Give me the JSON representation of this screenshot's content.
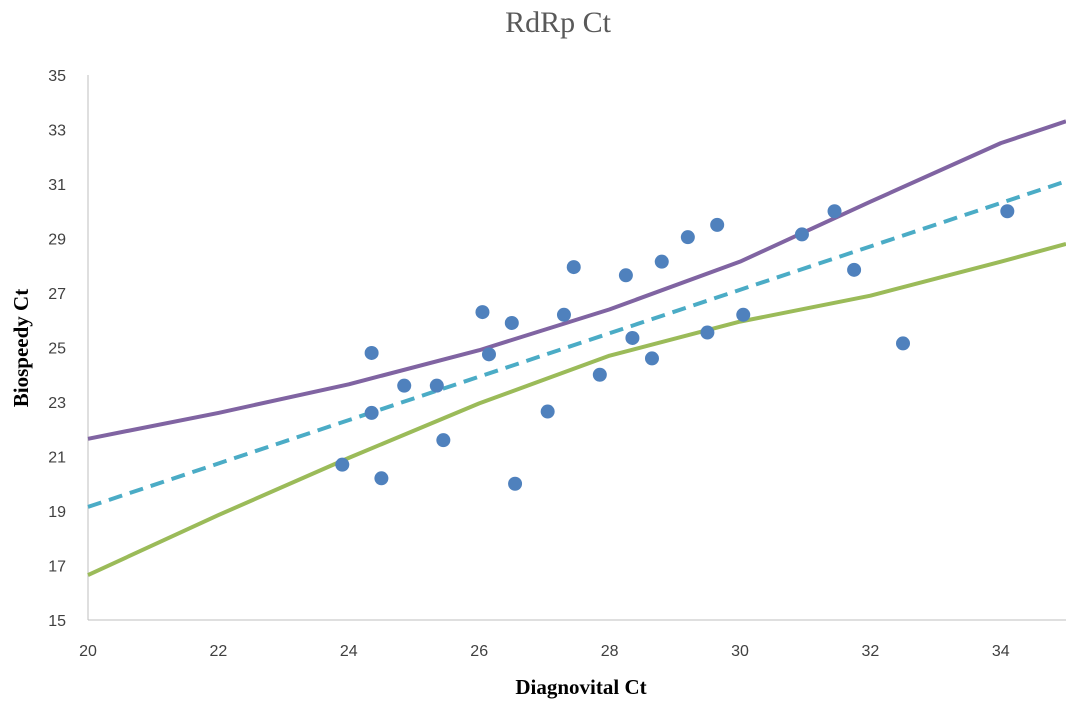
{
  "chart_data": {
    "type": "scatter",
    "title": "RdRp Ct",
    "xlabel": "Diagnovital Ct",
    "ylabel": "Biospeedy Ct",
    "xlim": [
      20,
      35
    ],
    "ylim": [
      15,
      35
    ],
    "x_ticks": [
      "20",
      "22",
      "24",
      "26",
      "28",
      "30",
      "32",
      "34"
    ],
    "y_ticks": [
      "15",
      "17",
      "19",
      "21",
      "23",
      "25",
      "27",
      "29",
      "31",
      "33",
      "35"
    ],
    "grid": false,
    "legend": "none",
    "points": [
      {
        "x": 23.9,
        "y": 20.7
      },
      {
        "x": 24.35,
        "y": 24.8
      },
      {
        "x": 24.35,
        "y": 22.6
      },
      {
        "x": 24.5,
        "y": 20.2
      },
      {
        "x": 24.85,
        "y": 23.6
      },
      {
        "x": 25.35,
        "y": 23.6
      },
      {
        "x": 25.45,
        "y": 21.6
      },
      {
        "x": 26.05,
        "y": 26.3
      },
      {
        "x": 26.15,
        "y": 24.75
      },
      {
        "x": 26.5,
        "y": 25.9
      },
      {
        "x": 26.55,
        "y": 20.0
      },
      {
        "x": 27.05,
        "y": 22.65
      },
      {
        "x": 27.3,
        "y": 26.2
      },
      {
        "x": 27.45,
        "y": 27.95
      },
      {
        "x": 27.85,
        "y": 24.0
      },
      {
        "x": 28.25,
        "y": 27.65
      },
      {
        "x": 28.35,
        "y": 25.35
      },
      {
        "x": 28.65,
        "y": 24.6
      },
      {
        "x": 28.8,
        "y": 28.15
      },
      {
        "x": 29.2,
        "y": 29.05
      },
      {
        "x": 29.5,
        "y": 25.55
      },
      {
        "x": 29.65,
        "y": 29.5
      },
      {
        "x": 30.05,
        "y": 26.2
      },
      {
        "x": 30.95,
        "y": 29.15
      },
      {
        "x": 31.45,
        "y": 30.0
      },
      {
        "x": 31.75,
        "y": 27.85
      },
      {
        "x": 32.5,
        "y": 25.15
      },
      {
        "x": 34.1,
        "y": 30.0
      }
    ],
    "lines": [
      {
        "style": "solid",
        "color": "#8064a2",
        "x": [
          20,
          22,
          24,
          26,
          28,
          30,
          32,
          34,
          35
        ],
        "y": [
          21.65,
          22.6,
          23.65,
          24.9,
          26.4,
          28.15,
          30.35,
          32.5,
          33.3
        ]
      },
      {
        "style": "dashed",
        "color": "#4bacc6",
        "x": [
          20,
          35
        ],
        "y": [
          19.15,
          31.1
        ]
      },
      {
        "style": "solid",
        "color": "#9bbb59",
        "x": [
          20,
          22,
          24,
          26,
          28,
          30,
          32,
          34,
          35
        ],
        "y": [
          16.65,
          18.85,
          20.95,
          22.95,
          24.7,
          25.95,
          26.9,
          28.15,
          28.8
        ]
      }
    ],
    "marker_color": "#4f81bd"
  }
}
